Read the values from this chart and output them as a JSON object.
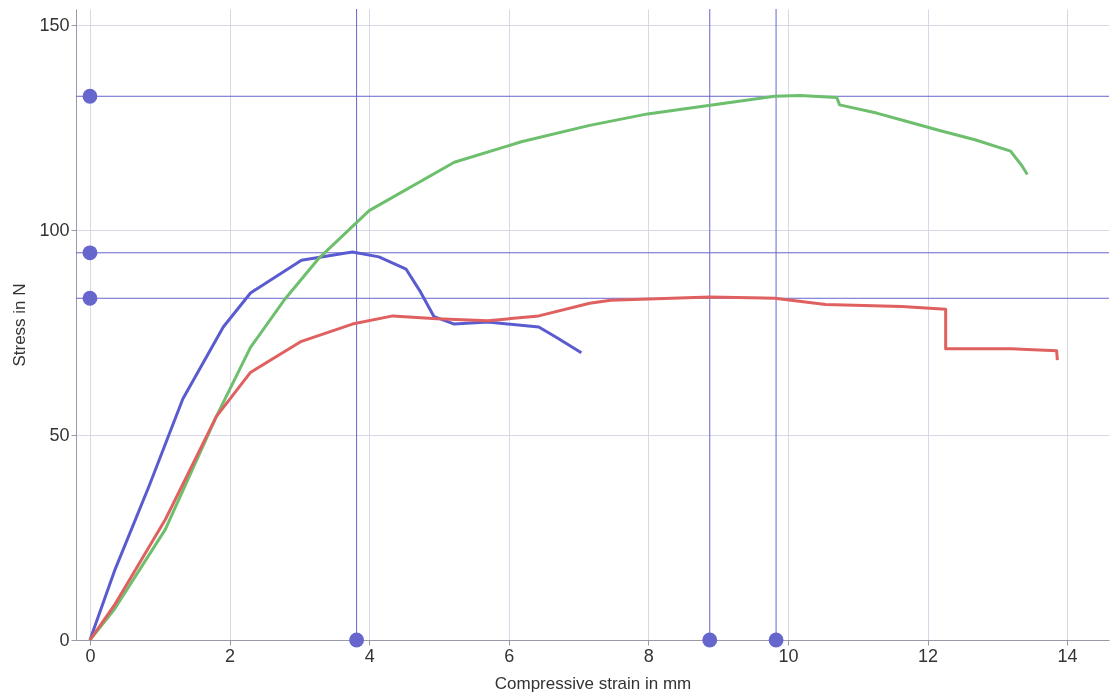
{
  "chart_data": {
    "type": "line",
    "xlabel": "Compressive strain in mm",
    "ylabel": "Stress in N",
    "xlim": [
      -0.2,
      14.6
    ],
    "ylim": [
      0,
      154
    ],
    "xticks": [
      0,
      2,
      4,
      6,
      8,
      10,
      12,
      14
    ],
    "yticks": [
      0,
      50,
      100,
      150
    ],
    "grid": true,
    "marker": "none",
    "line_style": "solid",
    "series": [
      {
        "color": "#5b5bd0",
        "x": [
          0,
          0.35,
          0.85,
          1.33,
          1.91,
          2.3,
          3.03,
          3.76,
          4.14,
          4.53,
          4.72,
          4.93,
          5.22,
          5.7,
          6.43,
          6.68,
          7.04
        ],
        "values": [
          0,
          16.8,
          37.7,
          58.8,
          76.4,
          84.7,
          92.7,
          94.7,
          93.5,
          90.5,
          85.4,
          78.9,
          77.1,
          77.6,
          76.4,
          73.9,
          70.1
        ]
      },
      {
        "color": "#6dbe6d",
        "x": [
          0,
          0.35,
          1.08,
          1.81,
          2.3,
          2.78,
          3.27,
          4.0,
          5.22,
          6.18,
          7.16,
          7.99,
          9.04,
          9.81,
          10.17,
          10.7,
          10.74,
          11.27,
          11.63,
          12.16,
          12.68,
          13.19,
          13.35,
          13.43
        ],
        "values": [
          0,
          7.5,
          27.0,
          54.5,
          71.4,
          82.9,
          93,
          104.8,
          116.6,
          121.6,
          125.6,
          128.4,
          130.9,
          132.7,
          132.9,
          132.4,
          130.6,
          128.6,
          126.9,
          124.4,
          122.1,
          119.3,
          115.8,
          113.6
        ]
      },
      {
        "type": "scatter",
        "marker": "circle",
        "color": "#6666cc",
        "x": [
          0,
          0,
          0,
          3.82,
          8.88,
          9.83
        ],
        "values": [
          132.7,
          94.5,
          83.4,
          0,
          0,
          0
        ]
      },
      {
        "color": "#e06060",
        "x": [
          0,
          0.35,
          1.08,
          1.81,
          2.3,
          3.03,
          3.76,
          4.34,
          4.97,
          5.7,
          6.43,
          7.16,
          7.46,
          8.88,
          9.81,
          10.54,
          11.63,
          12.26,
          12.26,
          13.19,
          13.85,
          13.86
        ],
        "values": [
          0,
          8.5,
          29.4,
          54.5,
          65.3,
          72.9,
          77.1,
          79.1,
          78.4,
          77.9,
          79.1,
          82.2,
          82.9,
          83.7,
          83.4,
          81.9,
          81.4,
          80.7,
          71.1,
          71.1,
          70.6,
          68.3
        ]
      }
    ],
    "ref_lines": [
      {
        "axis": "y",
        "value": 132.7,
        "color": "#6666cc"
      },
      {
        "axis": "y",
        "value": 94.5,
        "color": "#6666cc"
      },
      {
        "axis": "y",
        "value": 83.4,
        "color": "#6666cc"
      },
      {
        "axis": "x",
        "value": 3.82,
        "color": "#6666cc"
      },
      {
        "axis": "x",
        "value": 8.88,
        "color": "#6666cc"
      },
      {
        "axis": "x",
        "value": 9.83,
        "color": "#6666cc"
      }
    ]
  }
}
